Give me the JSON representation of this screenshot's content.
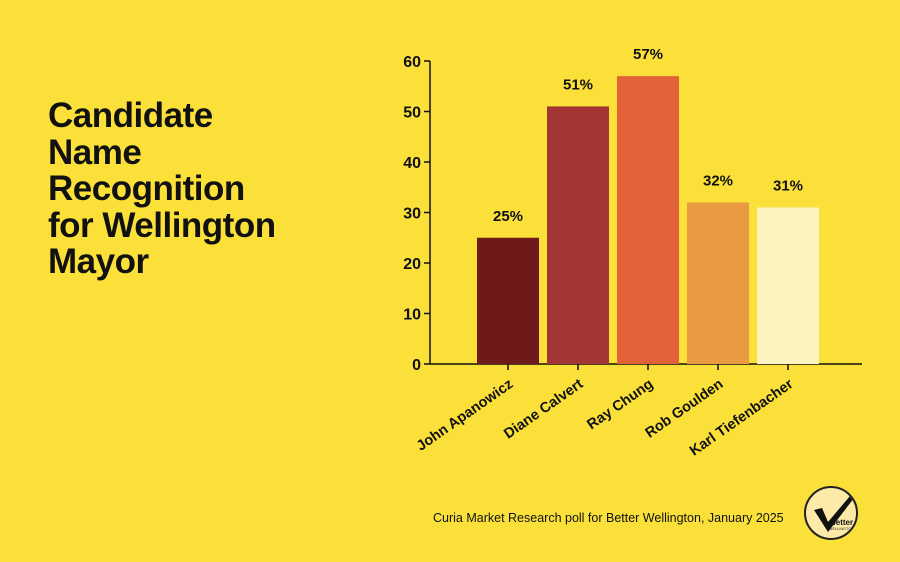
{
  "title_lines": [
    "Candidate",
    "Name",
    "Recognition",
    "for Wellington",
    "Mayor"
  ],
  "source": "Curia Market Research poll for Better Wellington, January 2025",
  "logo": {
    "word": "Better",
    "sub": "WELLINGTON"
  },
  "chart_data": {
    "type": "bar",
    "title": "Candidate Name Recognition for Wellington Mayor",
    "categories": [
      "John Apanowicz",
      "Diane Calvert",
      "Ray Chung",
      "Rob Goulden",
      "Karl Tiefenbacher"
    ],
    "values": [
      25,
      51,
      57,
      32,
      31
    ],
    "data_labels": [
      "25%",
      "51%",
      "57%",
      "32%",
      "31%"
    ],
    "colors": [
      "#6e1a1a",
      "#a33535",
      "#e2633a",
      "#ea9a40",
      "#fbf3c0"
    ],
    "ylim": [
      0,
      60
    ],
    "yticks": [
      0,
      10,
      20,
      30,
      40,
      50,
      60
    ],
    "xlabel": "",
    "ylabel": "",
    "grid": false
  }
}
